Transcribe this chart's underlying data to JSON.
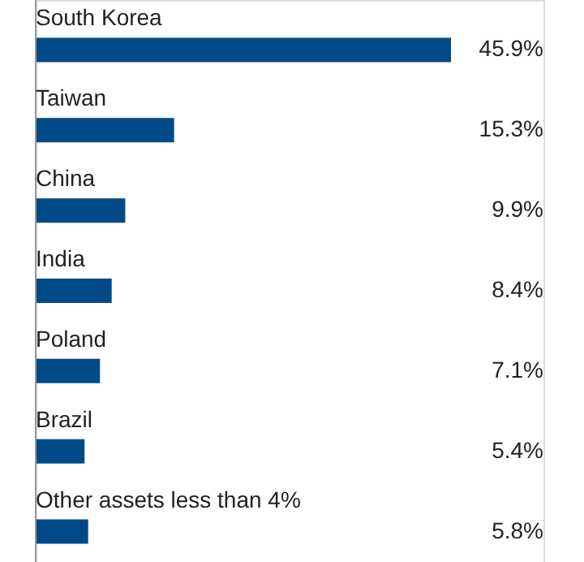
{
  "chart_data": {
    "type": "bar",
    "orientation": "horizontal",
    "value_labels": [
      "45.9%",
      "15.3%",
      "9.9%",
      "8.4%",
      "7.1%",
      "5.4%",
      "5.8%"
    ],
    "categories": [
      "South Korea",
      "Taiwan",
      "China",
      "India",
      "Poland",
      "Brazil",
      "Other assets less than 4%"
    ],
    "values": [
      45.9,
      15.3,
      9.9,
      8.4,
      7.1,
      5.4,
      5.8
    ],
    "color": "#004b87"
  }
}
